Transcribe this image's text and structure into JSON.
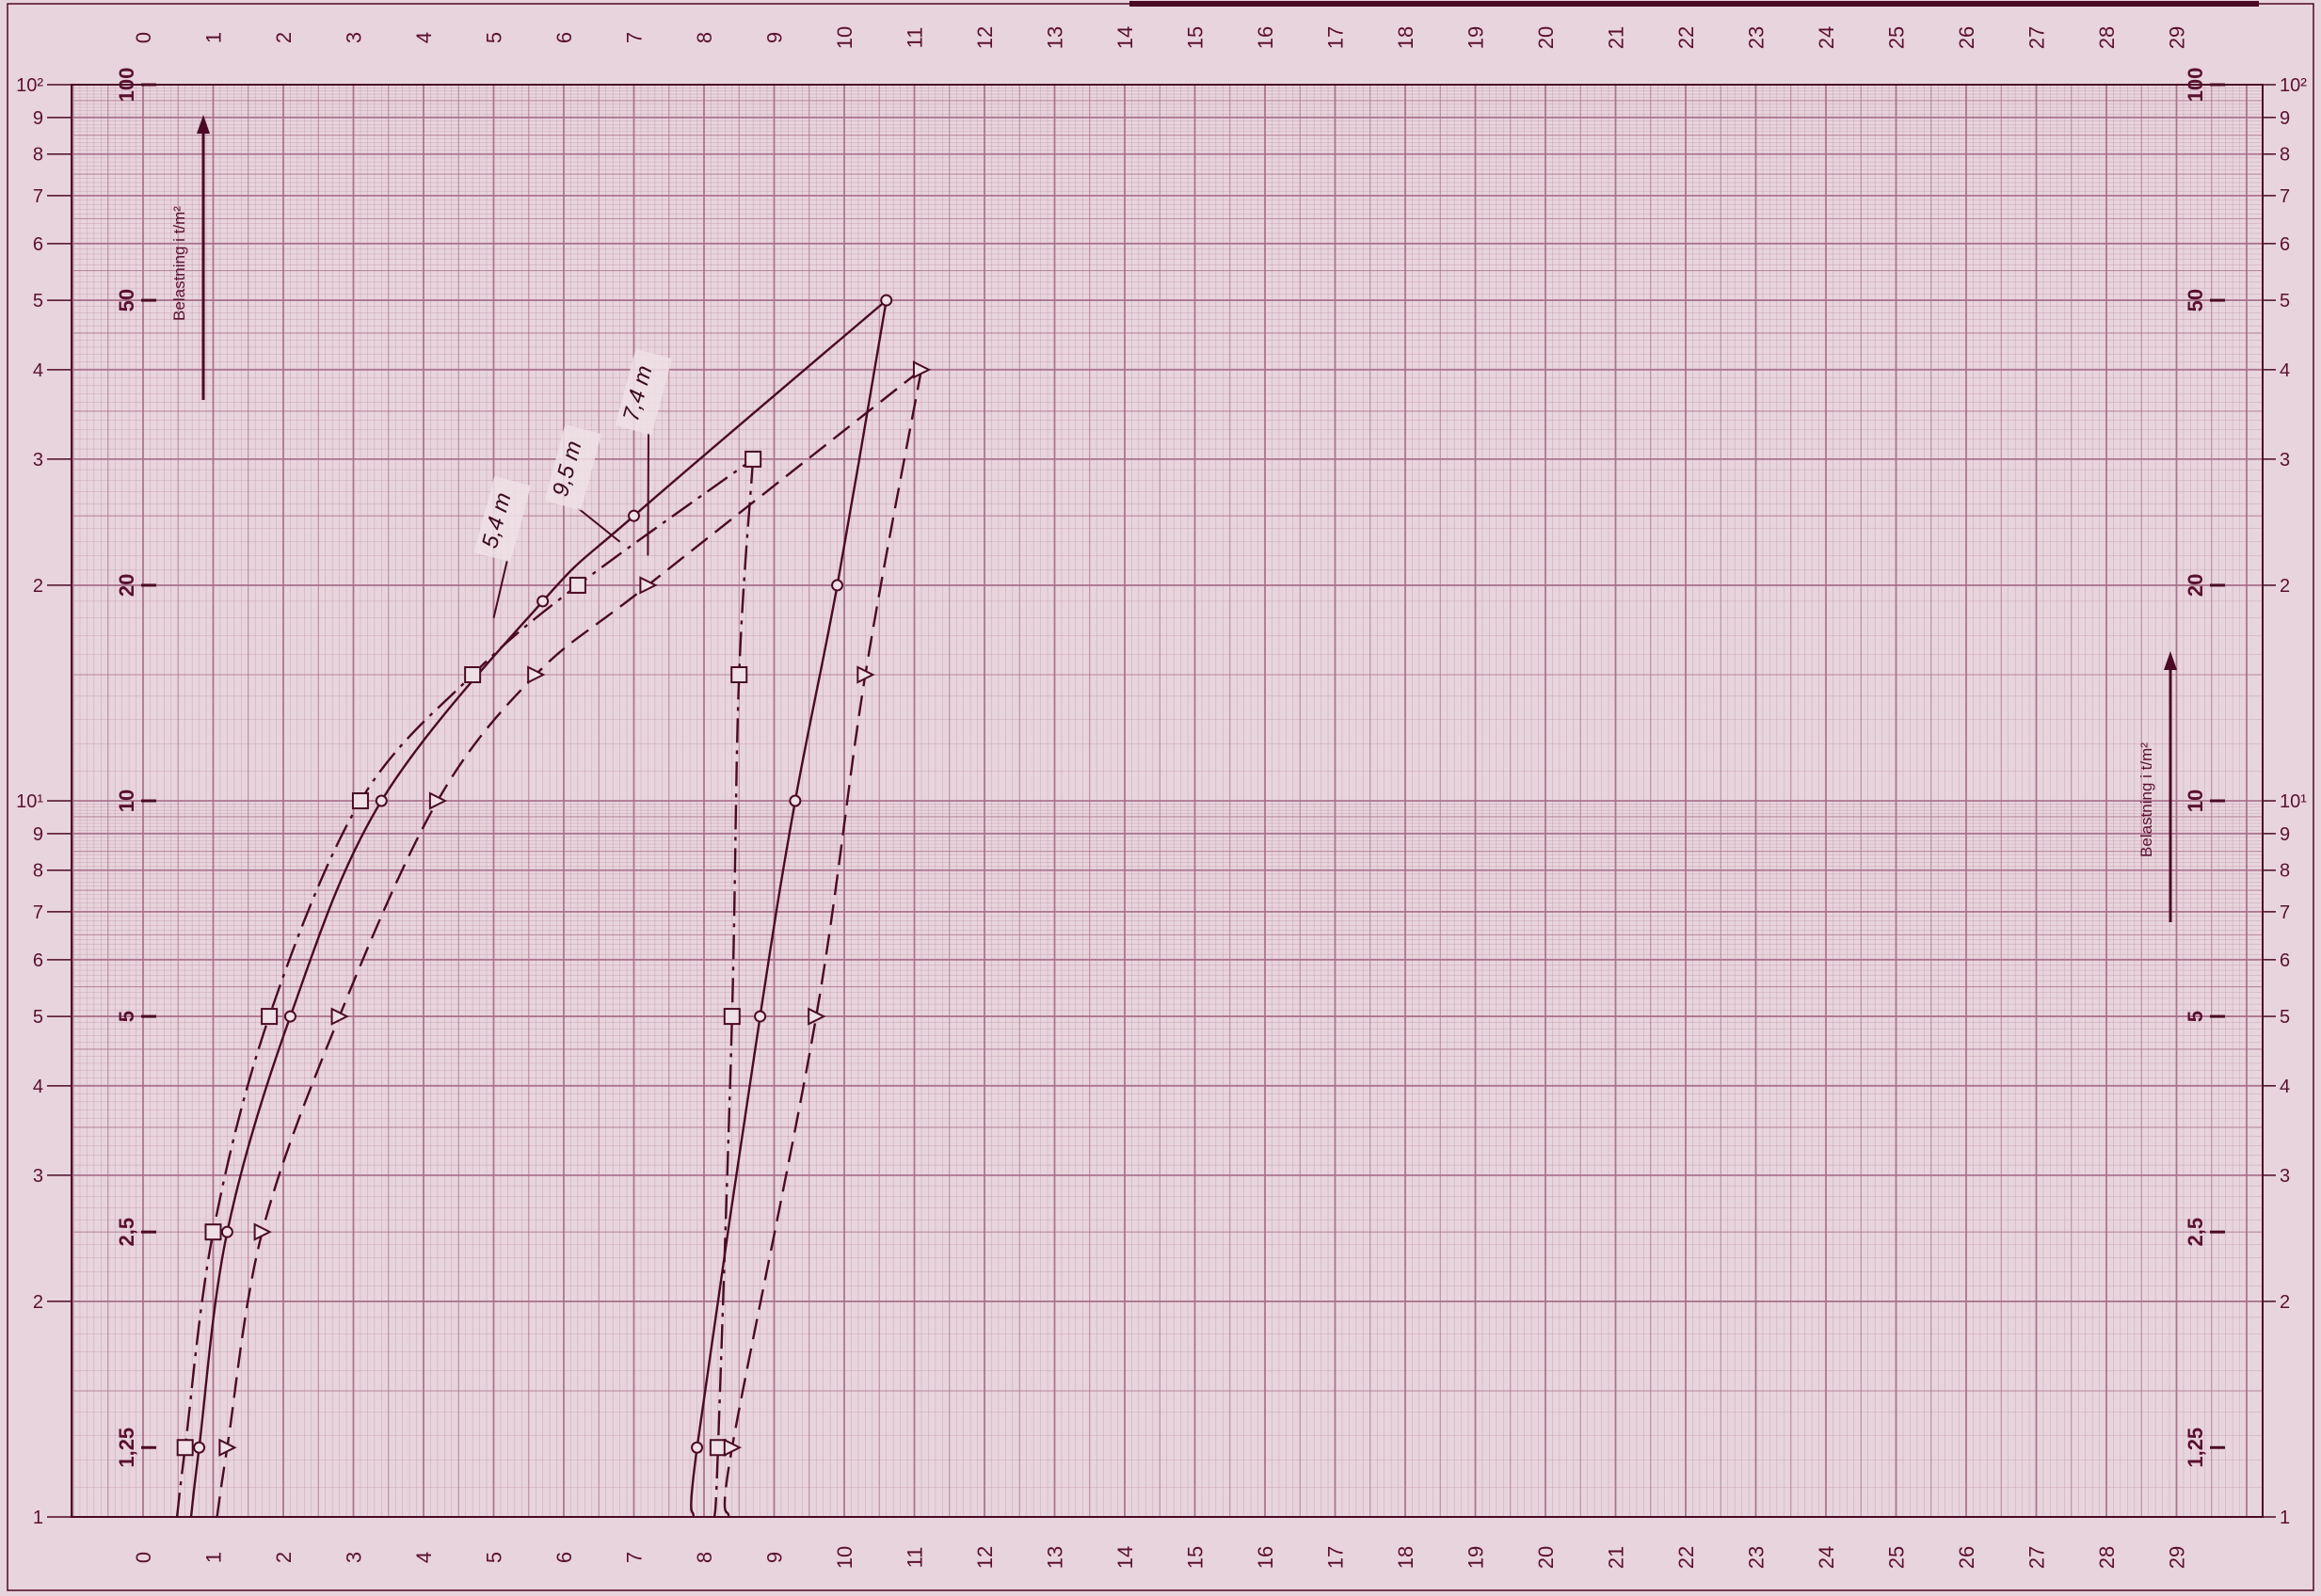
{
  "chart_data": {
    "type": "line",
    "title": "",
    "xlabel": "",
    "ylabel": "Belastning i t/m²",
    "ylabel_right": "Belastning i t/m²",
    "x_ticks": [
      "0",
      "1",
      "2",
      "3",
      "4",
      "5",
      "6",
      "7",
      "8",
      "9",
      "10",
      "11",
      "12",
      "13",
      "14",
      "15",
      "16",
      "17",
      "18",
      "19",
      "20",
      "21",
      "22",
      "23",
      "24",
      "25",
      "26",
      "27",
      "28",
      "29"
    ],
    "y_ticks_outer": [
      "1",
      "2",
      "3",
      "4",
      "5",
      "6",
      "7",
      "8",
      "9",
      "10¹",
      "2",
      "3",
      "4",
      "5",
      "6",
      "7",
      "8",
      "9",
      "10²"
    ],
    "y_ticks_inner": [
      "1,25",
      "2,5",
      "5",
      "10",
      "20",
      "50",
      "100"
    ],
    "xlim": [
      0,
      29
    ],
    "ylim": [
      1,
      100
    ],
    "yscale": "log",
    "grid": true,
    "colors": {
      "paper": "#e8d4dc",
      "grid": "#a8708a",
      "ink": "#4a0a24"
    },
    "series": [
      {
        "name": "5,4 m",
        "style": "solid",
        "marker": "circle",
        "loading": [
          [
            0.8,
            1.25
          ],
          [
            1.2,
            2.5
          ],
          [
            2.1,
            5
          ],
          [
            3.4,
            10
          ],
          [
            5.7,
            19
          ],
          [
            7,
            25
          ],
          [
            10.6,
            50
          ]
        ],
        "unloading": [
          [
            10.6,
            50
          ],
          [
            9.9,
            20
          ],
          [
            9.3,
            10
          ],
          [
            8.8,
            5
          ],
          [
            7.9,
            1.25
          ]
        ]
      },
      {
        "name": "9,5 m",
        "style": "dashdot",
        "marker": "square",
        "loading": [
          [
            0.6,
            1.25
          ],
          [
            1.0,
            2.5
          ],
          [
            1.8,
            5
          ],
          [
            3.1,
            10
          ],
          [
            4.7,
            15
          ],
          [
            6.2,
            20
          ],
          [
            8.7,
            30
          ]
        ],
        "unloading": [
          [
            8.7,
            30
          ],
          [
            8.5,
            15
          ],
          [
            8.4,
            5
          ],
          [
            8.2,
            1.25
          ]
        ]
      },
      {
        "name": "7,4 m",
        "style": "dashed",
        "marker": "triangle",
        "loading": [
          [
            1.2,
            1.25
          ],
          [
            1.7,
            2.5
          ],
          [
            2.8,
            5
          ],
          [
            4.2,
            10
          ],
          [
            5.6,
            15
          ],
          [
            7.2,
            20
          ],
          [
            11.1,
            40
          ]
        ],
        "unloading": [
          [
            11.1,
            40
          ],
          [
            10.3,
            15
          ],
          [
            9.6,
            5
          ],
          [
            8.4,
            1.25
          ]
        ]
      }
    ]
  }
}
